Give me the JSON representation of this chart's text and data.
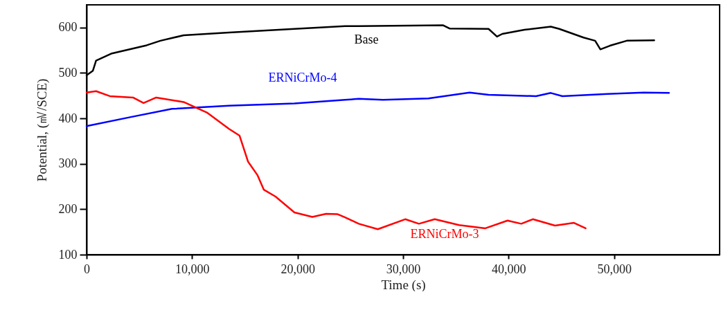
{
  "chart_data": {
    "type": "line",
    "xlabel": "Time (s)",
    "ylabel": "Potential, (㎷/SCE)",
    "xlim": [
      0,
      60000
    ],
    "ylim": [
      100,
      650
    ],
    "xticks": [
      {
        "value": 0,
        "label": "0"
      },
      {
        "value": 10000,
        "label": "10,000"
      },
      {
        "value": 20000,
        "label": "20,000"
      },
      {
        "value": 30000,
        "label": "30,000"
      },
      {
        "value": 40000,
        "label": "40,000"
      },
      {
        "value": 50000,
        "label": "50,000"
      }
    ],
    "yticks": [
      100,
      200,
      300,
      400,
      500,
      600
    ],
    "grid": false,
    "legend": false,
    "series": [
      {
        "name": "Base",
        "color": "#000000",
        "x": [
          0,
          600,
          900,
          2400,
          5700,
          7000,
          9200,
          13500,
          19700,
          24500,
          25800,
          33800,
          34400,
          38100,
          38900,
          39400,
          41500,
          44000,
          44800,
          47100,
          48200,
          48700,
          49600,
          51200,
          53800
        ],
        "values": [
          495,
          505,
          527,
          543,
          561,
          571,
          583,
          589,
          597,
          603,
          603,
          605,
          598,
          597,
          580,
          586,
          595,
          602,
          597,
          578,
          571,
          552,
          560,
          571,
          572
        ]
      },
      {
        "name": "ERNiCrMo-4",
        "color": "#0000ff",
        "x": [
          0,
          4200,
          8100,
          13500,
          19700,
          24500,
          25800,
          28100,
          32400,
          36300,
          38100,
          42600,
          44000,
          45100,
          49400,
          52800,
          55200
        ],
        "values": [
          383,
          403,
          421,
          428,
          433,
          441,
          443,
          441,
          444,
          457,
          452,
          449,
          456,
          449,
          454,
          457,
          456
        ]
      },
      {
        "name": "ERNiCrMo-3",
        "color": "#ff0000",
        "x": [
          0,
          900,
          2200,
          4400,
          5400,
          6600,
          9200,
          11400,
          13500,
          14500,
          15300,
          16200,
          16800,
          17900,
          19700,
          21400,
          22700,
          23800,
          24500,
          25800,
          27600,
          30200,
          31500,
          33000,
          35300,
          37800,
          39900,
          41200,
          42300,
          44400,
          46200,
          47300
        ],
        "values": [
          457,
          460,
          449,
          446,
          434,
          446,
          436,
          413,
          377,
          362,
          305,
          275,
          243,
          228,
          193,
          183,
          190,
          189,
          182,
          168,
          156,
          178,
          168,
          178,
          165,
          158,
          175,
          168,
          178,
          164,
          170,
          158
        ]
      }
    ]
  }
}
